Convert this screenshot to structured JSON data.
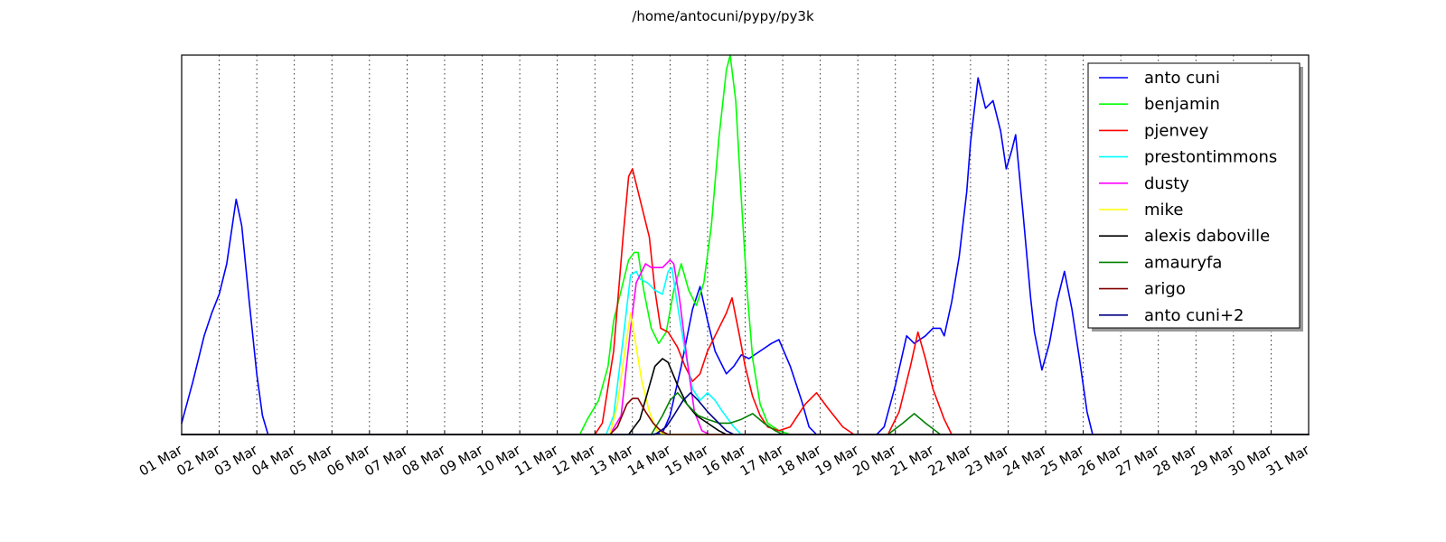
{
  "chart_data": {
    "type": "line",
    "title": "/home/antocuni/pypy/py3k",
    "xlabel": "",
    "ylabel": "",
    "x_tick_labels": [
      "01 Mar",
      "02 Mar",
      "03 Mar",
      "04 Mar",
      "05 Mar",
      "06 Mar",
      "07 Mar",
      "08 Mar",
      "09 Mar",
      "10 Mar",
      "11 Mar",
      "12 Mar",
      "13 Mar",
      "14 Mar",
      "15 Mar",
      "16 Mar",
      "17 Mar",
      "18 Mar",
      "19 Mar",
      "20 Mar",
      "21 Mar",
      "22 Mar",
      "23 Mar",
      "24 Mar",
      "25 Mar",
      "26 Mar",
      "27 Mar",
      "28 Mar",
      "29 Mar",
      "30 Mar",
      "31 Mar"
    ],
    "xlim": [
      1,
      31
    ],
    "ylim": [
      0,
      100
    ],
    "grid": "vertical dotted",
    "legend_position": "top-right",
    "series": [
      {
        "name": "anto cuni",
        "color": "#0000ff",
        "points": [
          [
            1.0,
            3
          ],
          [
            1.3,
            14
          ],
          [
            1.6,
            26
          ],
          [
            1.8,
            32
          ],
          [
            2.0,
            37
          ],
          [
            2.2,
            45
          ],
          [
            2.45,
            62
          ],
          [
            2.6,
            55
          ],
          [
            2.8,
            35
          ],
          [
            3.0,
            16
          ],
          [
            3.15,
            5
          ],
          [
            3.3,
            0
          ],
          [
            4,
            0
          ],
          [
            12,
            0
          ],
          [
            13.5,
            0
          ],
          [
            13.8,
            0.5
          ],
          [
            14.0,
            5
          ],
          [
            14.3,
            18
          ],
          [
            14.6,
            33
          ],
          [
            14.8,
            39
          ],
          [
            15.0,
            30
          ],
          [
            15.2,
            22
          ],
          [
            15.5,
            16
          ],
          [
            15.7,
            18
          ],
          [
            15.9,
            21
          ],
          [
            16.1,
            20
          ],
          [
            16.4,
            22
          ],
          [
            16.7,
            24
          ],
          [
            16.9,
            25
          ],
          [
            17.2,
            18
          ],
          [
            17.5,
            9
          ],
          [
            17.7,
            2
          ],
          [
            17.9,
            0
          ],
          [
            19.5,
            0
          ],
          [
            19.7,
            2
          ],
          [
            20.0,
            13
          ],
          [
            20.3,
            26
          ],
          [
            20.5,
            24
          ],
          [
            20.8,
            26
          ],
          [
            21.0,
            28
          ],
          [
            21.2,
            28
          ],
          [
            21.3,
            26
          ],
          [
            21.5,
            35
          ],
          [
            21.7,
            47
          ],
          [
            21.9,
            64
          ],
          [
            22.0,
            77
          ],
          [
            22.2,
            94
          ],
          [
            22.4,
            86
          ],
          [
            22.6,
            88
          ],
          [
            22.8,
            80
          ],
          [
            22.95,
            70
          ],
          [
            23.1,
            75
          ],
          [
            23.2,
            79
          ],
          [
            23.4,
            58
          ],
          [
            23.6,
            36
          ],
          [
            23.7,
            27
          ],
          [
            23.9,
            17
          ],
          [
            24.1,
            24
          ],
          [
            24.3,
            35
          ],
          [
            24.5,
            43
          ],
          [
            24.7,
            33
          ],
          [
            24.9,
            20
          ],
          [
            25.1,
            6
          ],
          [
            25.25,
            0
          ],
          [
            31,
            0
          ]
        ]
      },
      {
        "name": "benjamin",
        "color": "#00ff00",
        "points": [
          [
            1,
            0
          ],
          [
            11.6,
            0
          ],
          [
            11.8,
            4
          ],
          [
            12.1,
            9
          ],
          [
            12.35,
            18
          ],
          [
            12.5,
            30
          ],
          [
            12.7,
            38
          ],
          [
            12.9,
            46
          ],
          [
            13.05,
            48
          ],
          [
            13.15,
            48
          ],
          [
            13.3,
            38
          ],
          [
            13.5,
            28
          ],
          [
            13.7,
            24
          ],
          [
            13.9,
            27
          ],
          [
            14.1,
            38
          ],
          [
            14.3,
            45
          ],
          [
            14.5,
            38
          ],
          [
            14.7,
            34
          ],
          [
            14.9,
            40
          ],
          [
            15.1,
            55
          ],
          [
            15.3,
            78
          ],
          [
            15.5,
            96
          ],
          [
            15.6,
            100
          ],
          [
            15.75,
            88
          ],
          [
            15.9,
            62
          ],
          [
            16.05,
            38
          ],
          [
            16.2,
            20
          ],
          [
            16.4,
            8
          ],
          [
            16.6,
            3
          ],
          [
            16.9,
            1
          ],
          [
            17.2,
            0
          ],
          [
            31,
            0
          ]
        ]
      },
      {
        "name": "pjenvey",
        "color": "#ff0000",
        "points": [
          [
            1,
            0
          ],
          [
            12.0,
            0
          ],
          [
            12.2,
            3
          ],
          [
            12.5,
            22
          ],
          [
            12.75,
            52
          ],
          [
            12.9,
            68
          ],
          [
            13.0,
            70
          ],
          [
            13.1,
            66
          ],
          [
            13.3,
            58
          ],
          [
            13.45,
            52
          ],
          [
            13.6,
            38
          ],
          [
            13.75,
            28
          ],
          [
            13.95,
            27
          ],
          [
            14.2,
            23
          ],
          [
            14.4,
            18
          ],
          [
            14.6,
            14
          ],
          [
            14.8,
            16
          ],
          [
            15.0,
            22
          ],
          [
            15.2,
            26
          ],
          [
            15.5,
            32
          ],
          [
            15.65,
            36
          ],
          [
            15.85,
            26
          ],
          [
            16.0,
            18
          ],
          [
            16.2,
            10
          ],
          [
            16.4,
            5
          ],
          [
            16.6,
            2
          ],
          [
            16.9,
            1
          ],
          [
            17.2,
            2
          ],
          [
            17.6,
            8
          ],
          [
            17.9,
            11
          ],
          [
            18.2,
            7
          ],
          [
            18.6,
            2
          ],
          [
            18.9,
            0
          ],
          [
            19.8,
            0
          ],
          [
            20.1,
            6
          ],
          [
            20.4,
            18
          ],
          [
            20.6,
            27
          ],
          [
            20.8,
            20
          ],
          [
            21.0,
            12
          ],
          [
            21.3,
            4
          ],
          [
            21.5,
            0
          ],
          [
            31,
            0
          ]
        ]
      },
      {
        "name": "prestontimmons",
        "color": "#00ffff",
        "points": [
          [
            1,
            0
          ],
          [
            12.3,
            0
          ],
          [
            12.5,
            5
          ],
          [
            12.75,
            25
          ],
          [
            12.95,
            42
          ],
          [
            13.1,
            43
          ],
          [
            13.2,
            41
          ],
          [
            13.4,
            40
          ],
          [
            13.6,
            38
          ],
          [
            13.8,
            37
          ],
          [
            13.95,
            43
          ],
          [
            14.05,
            44
          ],
          [
            14.2,
            34
          ],
          [
            14.4,
            22
          ],
          [
            14.6,
            12
          ],
          [
            14.8,
            9
          ],
          [
            15.0,
            11
          ],
          [
            15.2,
            9
          ],
          [
            15.4,
            6
          ],
          [
            15.7,
            2
          ],
          [
            15.9,
            0
          ],
          [
            31,
            0
          ]
        ]
      },
      {
        "name": "dusty",
        "color": "#ff00ff",
        "points": [
          [
            1,
            0
          ],
          [
            12.4,
            0
          ],
          [
            12.7,
            5
          ],
          [
            12.95,
            28
          ],
          [
            13.1,
            40
          ],
          [
            13.25,
            43
          ],
          [
            13.35,
            45
          ],
          [
            13.5,
            44
          ],
          [
            13.8,
            44
          ],
          [
            14.0,
            46
          ],
          [
            14.1,
            45
          ],
          [
            14.25,
            36
          ],
          [
            14.45,
            20
          ],
          [
            14.65,
            6
          ],
          [
            14.85,
            1
          ],
          [
            15.05,
            0
          ],
          [
            31,
            0
          ]
        ]
      },
      {
        "name": "mike",
        "color": "#ffff00",
        "points": [
          [
            1,
            0
          ],
          [
            12.4,
            0
          ],
          [
            12.6,
            8
          ],
          [
            12.8,
            22
          ],
          [
            12.95,
            32
          ],
          [
            13.05,
            26
          ],
          [
            13.25,
            14
          ],
          [
            13.45,
            6
          ],
          [
            13.65,
            1
          ],
          [
            13.85,
            0
          ],
          [
            31,
            0
          ]
        ]
      },
      {
        "name": "alexis daboville",
        "color": "#000000",
        "points": [
          [
            1,
            0
          ],
          [
            12.9,
            0
          ],
          [
            13.2,
            4
          ],
          [
            13.4,
            11
          ],
          [
            13.6,
            18
          ],
          [
            13.8,
            20
          ],
          [
            13.95,
            19
          ],
          [
            14.2,
            13
          ],
          [
            14.45,
            8
          ],
          [
            14.7,
            5
          ],
          [
            15.0,
            3
          ],
          [
            15.3,
            1
          ],
          [
            15.5,
            0
          ],
          [
            31,
            0
          ]
        ]
      },
      {
        "name": "amauryfa",
        "color": "#008000",
        "points": [
          [
            1,
            0
          ],
          [
            13.5,
            0
          ],
          [
            13.8,
            5
          ],
          [
            14.0,
            9
          ],
          [
            14.2,
            11
          ],
          [
            14.45,
            8
          ],
          [
            14.75,
            5
          ],
          [
            15.0,
            4
          ],
          [
            15.3,
            3
          ],
          [
            15.6,
            3
          ],
          [
            15.9,
            4
          ],
          [
            16.2,
            5.5
          ],
          [
            16.5,
            3
          ],
          [
            16.8,
            1
          ],
          [
            17.0,
            0
          ],
          [
            19.8,
            0
          ],
          [
            20.2,
            3
          ],
          [
            20.5,
            5.5
          ],
          [
            20.8,
            3
          ],
          [
            21.2,
            0
          ],
          [
            31,
            0
          ]
        ]
      },
      {
        "name": "arigo",
        "color": "#800000",
        "points": [
          [
            1,
            0
          ],
          [
            12.4,
            0
          ],
          [
            12.6,
            2
          ],
          [
            12.85,
            8
          ],
          [
            13.0,
            9.5
          ],
          [
            13.15,
            9.5
          ],
          [
            13.35,
            6
          ],
          [
            13.55,
            3
          ],
          [
            13.75,
            1
          ],
          [
            13.95,
            0
          ],
          [
            31,
            0
          ]
        ]
      },
      {
        "name": "anto cuni+2",
        "color": "#000080",
        "points": [
          [
            1,
            0
          ],
          [
            13.6,
            0
          ],
          [
            13.9,
            2
          ],
          [
            14.1,
            5
          ],
          [
            14.35,
            9
          ],
          [
            14.55,
            11
          ],
          [
            14.75,
            9
          ],
          [
            15.0,
            6
          ],
          [
            15.3,
            3
          ],
          [
            15.5,
            1
          ],
          [
            15.7,
            0
          ],
          [
            31,
            0
          ]
        ]
      }
    ]
  }
}
